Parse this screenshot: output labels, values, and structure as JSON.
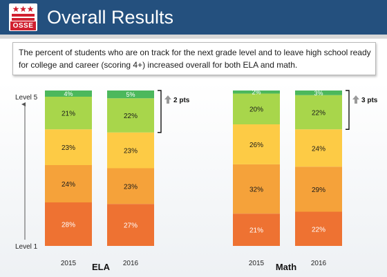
{
  "header": {
    "title": "Overall Results",
    "logo_text": "OSSE",
    "logo_icon": "dc-flag-stars-and-bars-icon"
  },
  "description": "The percent of students who are on track for the next grade level and to leave high school ready for college and career (scoring 4+) increased overall for both ELA and math.",
  "colors": {
    "header_bg": "#24507e",
    "level1": "#ee7232",
    "level2": "#f5a23a",
    "level3": "#fdcb45",
    "level4": "#a8d64b",
    "level5": "#4cb85c"
  },
  "chart_data": {
    "type": "bar",
    "stacked": true,
    "y_axis_top_label": "Level 5",
    "y_axis_bottom_label": "Level 1",
    "ylim": [
      0,
      100
    ],
    "groups": [
      {
        "label": "ELA",
        "categories": [
          "2015",
          "2016"
        ],
        "series": [
          {
            "level": 1,
            "values": [
              28,
              27
            ],
            "labels": [
              "28%",
              "27%"
            ]
          },
          {
            "level": 2,
            "values": [
              24,
              23
            ],
            "labels": [
              "24%",
              "23%"
            ]
          },
          {
            "level": 3,
            "values": [
              23,
              23
            ],
            "labels": [
              "23%",
              "23%"
            ]
          },
          {
            "level": 4,
            "values": [
              21,
              22
            ],
            "labels": [
              "21%",
              "22%"
            ]
          },
          {
            "level": 5,
            "values": [
              4,
              5
            ],
            "labels": [
              "4%",
              "5%"
            ]
          }
        ],
        "annotation": "2 pts",
        "annotation_icon": "up-arrow-icon"
      },
      {
        "label": "Math",
        "categories": [
          "2015",
          "2016"
        ],
        "series": [
          {
            "level": 1,
            "values": [
              21,
              22
            ],
            "labels": [
              "21%",
              "22%"
            ]
          },
          {
            "level": 2,
            "values": [
              32,
              29
            ],
            "labels": [
              "32%",
              "29%"
            ]
          },
          {
            "level": 3,
            "values": [
              26,
              24
            ],
            "labels": [
              "26%",
              "24%"
            ]
          },
          {
            "level": 4,
            "values": [
              20,
              22
            ],
            "labels": [
              "20%",
              "22%"
            ]
          },
          {
            "level": 5,
            "values": [
              2,
              3
            ],
            "labels": [
              "2%",
              "3%"
            ]
          }
        ],
        "annotation": "3 pts",
        "annotation_icon": "up-arrow-icon"
      }
    ]
  }
}
